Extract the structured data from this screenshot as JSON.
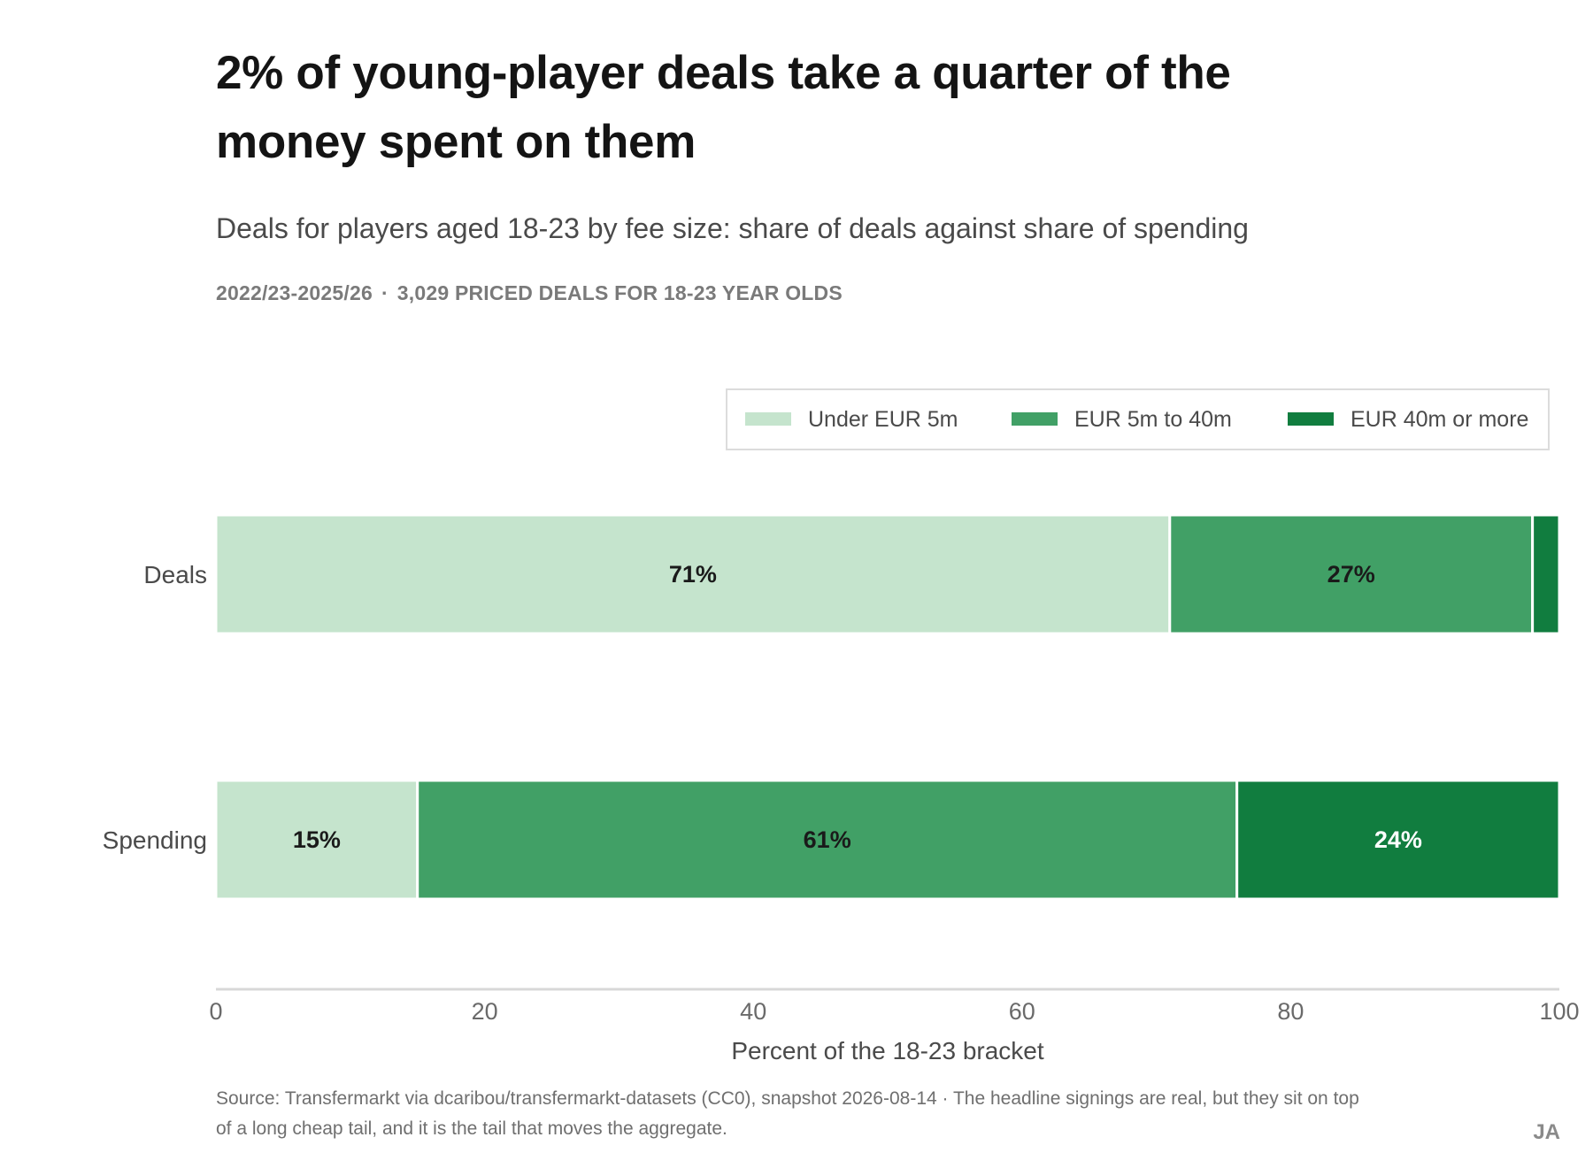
{
  "header": {
    "title": "2% of young-player deals take a quarter of the money spent on them",
    "subtitle": "Deals for players aged 18-23 by fee size: share of deals against share of spending",
    "meta_period": "2022/23-2025/26",
    "meta_separator": "·",
    "meta_count": "3,029 PRICED DEALS FOR 18-23 YEAR OLDS"
  },
  "chart_data": {
    "type": "bar",
    "orientation": "horizontal",
    "stacked": true,
    "categories": [
      "Deals",
      "Spending"
    ],
    "series": [
      {
        "name": "Under EUR 5m",
        "values": [
          71,
          15
        ],
        "labels": [
          "71%",
          "15%"
        ],
        "color": "#c5e4cd",
        "label_color": "#1a1a1a"
      },
      {
        "name": "EUR 5m to 40m",
        "values": [
          27,
          61
        ],
        "labels": [
          "27%",
          "61%"
        ],
        "color": "#41a066",
        "label_color": "#1a1a1a"
      },
      {
        "name": "EUR 40m or more",
        "values": [
          2,
          24
        ],
        "labels": [
          "",
          "24%"
        ],
        "color": "#117d3f",
        "label_color": "#ffffff"
      }
    ],
    "xlim": [
      0,
      100
    ],
    "xticks": [
      0,
      20,
      40,
      60,
      80,
      100
    ],
    "xlabel": "Percent of the 18-23 bracket",
    "legend_position": "top-right",
    "grid": false
  },
  "footer": {
    "source": "Source: Transfermarkt via dcaribou/transfermarkt-datasets (CC0), snapshot 2026-08-14 · The headline signings are real, but they sit on top of a long cheap tail, and it is the tail that moves the aggregate.",
    "badge": "JA"
  }
}
